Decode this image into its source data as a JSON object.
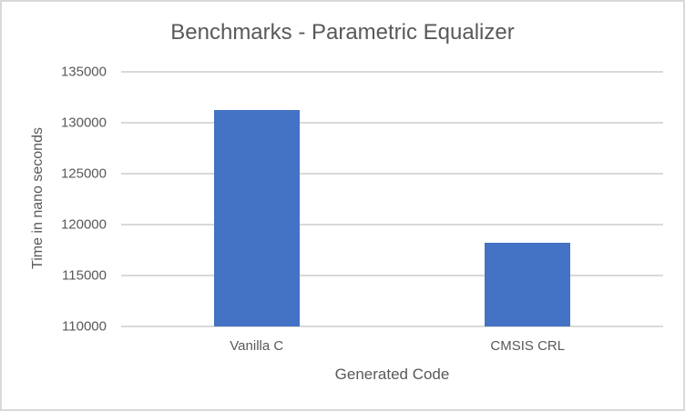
{
  "chart_data": {
    "type": "bar",
    "title": "Benchmarks - Parametric Equalizer",
    "xlabel": "Generated Code",
    "ylabel": "Time in nano seconds",
    "categories": [
      "Vanilla C",
      "CMSIS CRL"
    ],
    "values": [
      131250,
      118200
    ],
    "ylim": [
      110000,
      135000
    ],
    "yticks": [
      "135000",
      "130000",
      "125000",
      "120000",
      "115000",
      "110000"
    ],
    "grid": true,
    "legend": null,
    "bar_color": "#4472c4"
  }
}
